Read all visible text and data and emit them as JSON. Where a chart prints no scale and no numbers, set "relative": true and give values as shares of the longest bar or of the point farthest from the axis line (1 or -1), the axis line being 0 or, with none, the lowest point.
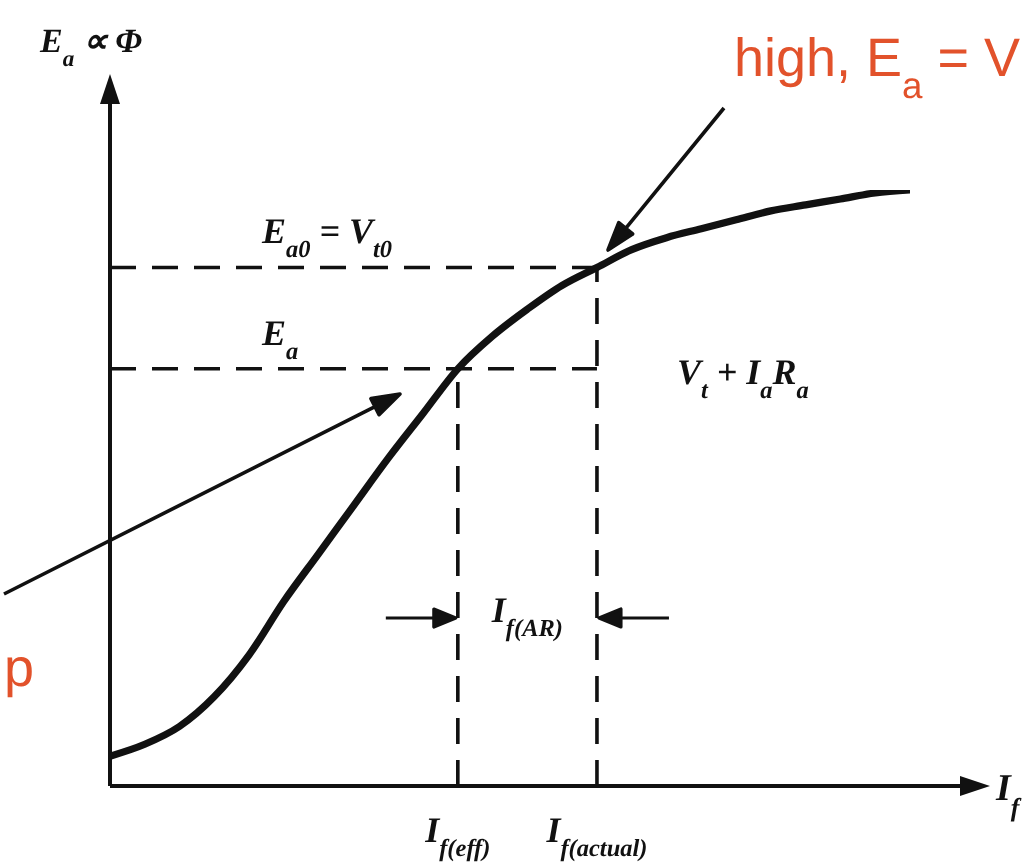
{
  "chart_data": {
    "type": "line",
    "relative": true,
    "xlabel": "I$_{f}$",
    "ylabel": "E$_{a}$ ∝ Φ",
    "categories": [
      null,
      null,
      null,
      null,
      null,
      null,
      null,
      null,
      null,
      null,
      "I$_{f(eff)}$",
      null,
      null,
      null,
      "I$_{f(actual)}$",
      null,
      null,
      null,
      null,
      null,
      null,
      null,
      null,
      null
    ],
    "series": [
      {
        "color": "#111111",
        "values": [
          0.05,
          0.07,
          0.1,
          0.15,
          0.22,
          0.31,
          0.39,
          0.47,
          0.55,
          0.625,
          0.7,
          0.755,
          0.8,
          0.84,
          0.87,
          0.9,
          0.92,
          0.935,
          0.95,
          0.965,
          0.975,
          0.985,
          0.995,
          1
        ]
      }
    ],
    "line_style": "solid",
    "ref_lines": [
      {
        "axis": "y",
        "value": 0.87,
        "label": "E$_{a0}$ = V$_{t0}$",
        "color": "#111111",
        "line_style": "dashed"
      },
      {
        "axis": "y",
        "value": 0.7,
        "label": "E$_{a}$",
        "color": "#111111",
        "line_style": "dashed"
      },
      {
        "axis": "x",
        "value": "I$_{f(eff)}$",
        "color": "#111111",
        "line_style": "dashed"
      },
      {
        "axis": "x",
        "value": "I$_{f(actual)}$",
        "color": "#111111",
        "line_style": "dashed"
      }
    ],
    "annotations": [
      "V$_{t}$ + I$_{a}$R$_{a}$",
      "I$_{f(AR)}$",
      "high, E$_{a}$ = V",
      "p"
    ]
  }
}
